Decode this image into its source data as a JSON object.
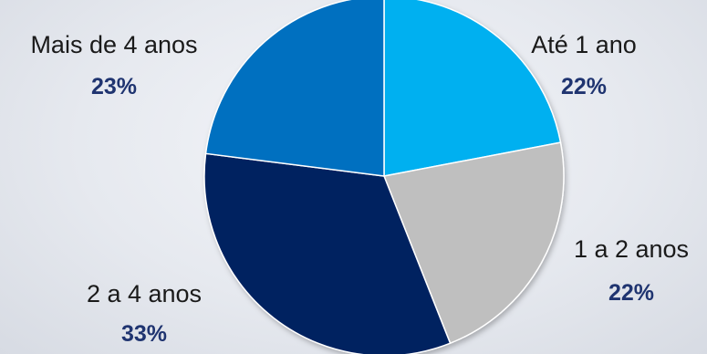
{
  "chart_data": {
    "type": "pie",
    "categories": [
      "Até 1 ano",
      "1 a 2 anos",
      "2 a 4 anos",
      "Mais de 4 anos"
    ],
    "values": [
      22,
      22,
      33,
      23
    ],
    "value_labels": [
      "22%",
      "22%",
      "33%",
      "23%"
    ],
    "colors": [
      "#00b0f0",
      "#bfbfbf",
      "#002060",
      "#0070c0"
    ],
    "start_angle_deg": 0,
    "direction": "clockwise",
    "legend": "none",
    "title": ""
  }
}
